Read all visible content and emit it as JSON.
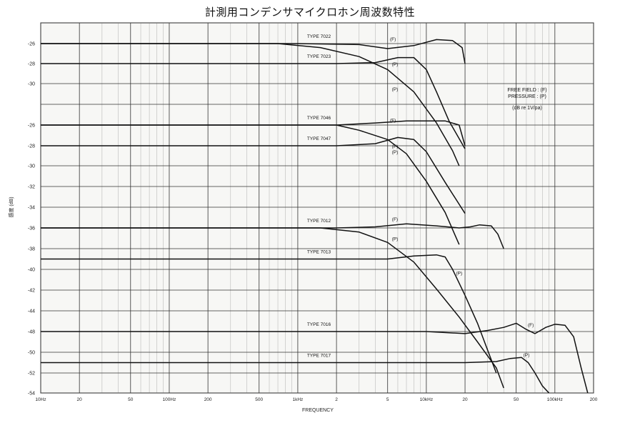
{
  "chart_data": {
    "type": "line",
    "title": "計測用コンデンサマイクロホン周波数特性",
    "xlabel": "FREQUENCY",
    "ylabel": "感度 (dB)",
    "x_scale": "log",
    "xlim": [
      10,
      200000
    ],
    "x_ticks": [
      {
        "v": 10,
        "label": "10Hz"
      },
      {
        "v": 20,
        "label": "20"
      },
      {
        "v": 50,
        "label": "50"
      },
      {
        "v": 100,
        "label": "100Hz"
      },
      {
        "v": 200,
        "label": "200"
      },
      {
        "v": 500,
        "label": "500"
      },
      {
        "v": 1000,
        "label": "1kHz"
      },
      {
        "v": 2000,
        "label": "2"
      },
      {
        "v": 5000,
        "label": "5"
      },
      {
        "v": 10000,
        "label": "10kHz"
      },
      {
        "v": 20000,
        "label": "20"
      },
      {
        "v": 50000,
        "label": "50"
      },
      {
        "v": 100000,
        "label": "100kHz"
      },
      {
        "v": 200000,
        "label": "200"
      }
    ],
    "y_rows": [
      "-26",
      "-28",
      "-30",
      "",
      "-26",
      "-28",
      "-30",
      "-32",
      "-34",
      "-36",
      "-38",
      "-40",
      "-42",
      "-44",
      "-48",
      "-50",
      "-52",
      "-54"
    ],
    "legend_text": [
      "FREE FIELD : (F)",
      "PRESSURE : (P)",
      "(dB re 1V/pa)"
    ],
    "series": [
      {
        "name": "TYPE 7022",
        "label_pos": [
          2000,
          -26
        ],
        "curves": [
          {
            "tag": "(F)",
            "tag_at": [
              5500,
              -25.7
            ],
            "points": [
              [
                10,
                -26
              ],
              [
                1000,
                -26
              ],
              [
                3000,
                -26.1
              ],
              [
                5000,
                -26.5
              ],
              [
                8000,
                -26.2
              ],
              [
                12000,
                -25.6
              ],
              [
                16000,
                -25.7
              ],
              [
                19000,
                -26.4
              ],
              [
                20000,
                -28
              ]
            ]
          },
          {
            "tag": "(P)",
            "tag_at": [
              5700,
              -28.2
            ],
            "points": [
              [
                10,
                -26
              ],
              [
                700,
                -26
              ],
              [
                1500,
                -26.4
              ],
              [
                3000,
                -27.3
              ],
              [
                5000,
                -28.6
              ],
              [
                8000,
                -30.8
              ],
              [
                12000,
                -33.8
              ],
              [
                16000,
                -36.5
              ],
              [
                18000,
                -38
              ]
            ]
          }
        ]
      },
      {
        "name": "TYPE 7023",
        "label_pos": [
          2000,
          -28
        ],
        "curves": [
          {
            "tag": "(P)",
            "tag_at": [
              5700,
              -30.7
            ],
            "points": [
              [
                10,
                -28
              ],
              [
                2000,
                -28
              ],
              [
                4000,
                -27.9
              ],
              [
                6000,
                -27.4
              ],
              [
                8000,
                -27.4
              ],
              [
                10000,
                -28.6
              ],
              [
                12000,
                -30.8
              ],
              [
                15000,
                -33.6
              ],
              [
                20000,
                -36.3
              ]
            ]
          }
        ]
      },
      {
        "name": "TYPE 7046",
        "label_pos": [
          2000,
          -26
        ],
        "curves": [
          {
            "tag": "(F)",
            "tag_at": [
              5500,
              -25.7
            ],
            "points": [
              [
                10,
                -26
              ],
              [
                2000,
                -26
              ],
              [
                4000,
                -25.8
              ],
              [
                7000,
                -25.6
              ],
              [
                10000,
                -25.6
              ],
              [
                14000,
                -25.6
              ],
              [
                18000,
                -26
              ],
              [
                20000,
                -28
              ]
            ]
          },
          {
            "tag": "(P)",
            "tag_at": [
              5700,
              -28.2
            ],
            "points": [
              [
                10,
                -26
              ],
              [
                2000,
                -26
              ],
              [
                3000,
                -26.5
              ],
              [
                5000,
                -27.4
              ],
              [
                7000,
                -28.8
              ],
              [
                10000,
                -31.5
              ],
              [
                14000,
                -34.5
              ],
              [
                18000,
                -37.6
              ]
            ]
          }
        ]
      },
      {
        "name": "TYPE 7047",
        "label_pos": [
          2000,
          -28
        ],
        "curves": [
          {
            "tag": "(P)",
            "tag_at": [
              5700,
              -28.8
            ],
            "points": [
              [
                10,
                -28
              ],
              [
                2000,
                -28
              ],
              [
                4000,
                -27.8
              ],
              [
                6000,
                -27.2
              ],
              [
                8000,
                -27.4
              ],
              [
                10000,
                -28.6
              ],
              [
                14000,
                -31.6
              ],
              [
                20000,
                -34.6
              ]
            ]
          }
        ]
      },
      {
        "name": "TYPE 7012",
        "label_pos": [
          2000,
          -36
        ],
        "curves": [
          {
            "tag": "(F)",
            "tag_at": [
              5700,
              -35.3
            ],
            "points": [
              [
                10,
                -36
              ],
              [
                2000,
                -36
              ],
              [
                4000,
                -35.9
              ],
              [
                7000,
                -35.6
              ],
              [
                12000,
                -35.8
              ],
              [
                18000,
                -36
              ],
              [
                22000,
                -35.9
              ],
              [
                26000,
                -35.7
              ],
              [
                32000,
                -35.8
              ],
              [
                36000,
                -36.6
              ],
              [
                40000,
                -38
              ]
            ]
          },
          {
            "tag": "(P)",
            "tag_at": [
              5700,
              -37.2
            ],
            "points": [
              [
                10,
                -36
              ],
              [
                1500,
                -36
              ],
              [
                3000,
                -36.4
              ],
              [
                5000,
                -37.4
              ],
              [
                8000,
                -39.3
              ],
              [
                12000,
                -41.9
              ],
              [
                18000,
                -44.6
              ],
              [
                25000,
                -47
              ],
              [
                35000,
                -49.5
              ],
              [
                40000,
                -51.5
              ]
            ]
          }
        ]
      },
      {
        "name": "TYPE 7013",
        "label_pos": [
          2000,
          -39
        ],
        "curves": [
          {
            "tag": "(P)",
            "tag_at": [
              18000,
              -40.5
            ],
            "points": [
              [
                10,
                -39
              ],
              [
                5000,
                -39
              ],
              [
                8000,
                -38.7
              ],
              [
                12000,
                -38.6
              ],
              [
                14000,
                -38.8
              ],
              [
                16000,
                -40
              ],
              [
                20000,
                -42.5
              ],
              [
                25000,
                -45.2
              ],
              [
                30000,
                -47.8
              ],
              [
                35000,
                -50
              ]
            ]
          }
        ]
      },
      {
        "name": "TYPE 7016",
        "label_pos": [
          2000,
          -48
        ],
        "curves": [
          {
            "tag": "(F)",
            "tag_at": [
              65000,
              -47.5
            ],
            "points": [
              [
                10,
                -48
              ],
              [
                10000,
                -48
              ],
              [
                20000,
                -48.2
              ],
              [
                30000,
                -47.9
              ],
              [
                40000,
                -47.6
              ],
              [
                50000,
                -47.2
              ],
              [
                60000,
                -47.8
              ],
              [
                70000,
                -48.2
              ],
              [
                85000,
                -47.6
              ],
              [
                100000,
                -47.3
              ],
              [
                120000,
                -47.4
              ],
              [
                140000,
                -48.5
              ],
              [
                160000,
                -51.5
              ],
              [
                180000,
                -54
              ]
            ]
          }
        ]
      },
      {
        "name": "TYPE 7017",
        "label_pos": [
          2000,
          -51
        ],
        "curves": [
          {
            "tag": "(P)",
            "tag_at": [
              60000,
              -50.4
            ],
            "points": [
              [
                10,
                -51
              ],
              [
                20000,
                -51
              ],
              [
                35000,
                -50.9
              ],
              [
                45000,
                -50.6
              ],
              [
                55000,
                -50.5
              ],
              [
                62000,
                -51
              ],
              [
                70000,
                -52
              ],
              [
                80000,
                -53.3
              ],
              [
                90000,
                -54
              ]
            ]
          }
        ]
      }
    ]
  }
}
